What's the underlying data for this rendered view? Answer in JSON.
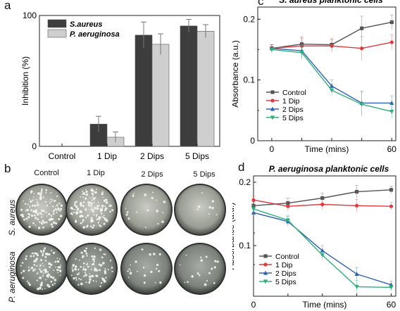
{
  "figure": {
    "panels": {
      "a": "a",
      "b": "b",
      "c": "c",
      "d": "d"
    }
  },
  "panel_a": {
    "ylabel": "Inhibition (%)",
    "y_ticks": [
      "0",
      "100"
    ],
    "legend": [
      "S.aureus",
      "P. aeruginosa"
    ]
  },
  "panel_b": {
    "columns": [
      "Control",
      "1 Dip",
      "2 Dips",
      "5 Dips"
    ],
    "rows": [
      "S. aureus",
      "P. aeruginosa"
    ]
  },
  "panel_c": {
    "title": "S. aureus planktonic cells",
    "ylabel": "Absorbance (a.u.)",
    "xlabel": "Time (mins)",
    "x_ticks": [
      "0",
      "60"
    ],
    "y_ticks": [
      "0",
      "0.1",
      "0.2"
    ],
    "legend": [
      "Control",
      "1 Dip",
      "2 Dips",
      "5 Dips"
    ]
  },
  "panel_d": {
    "title": "P. aeruginosa planktonic cells",
    "ylabel": "Absorbance (a.u.)",
    "xlabel": "Time (mins)",
    "x_ticks": [
      "0",
      "60"
    ],
    "y_ticks": [
      "0.1",
      "0.2"
    ],
    "legend": [
      "Control",
      "1 Dip",
      "2 Dips",
      "5 Dips"
    ]
  },
  "chart_data": [
    {
      "id": "panel-a",
      "type": "bar",
      "categories": [
        "Control",
        "1 Dip",
        "2 Dips",
        "5 Dips"
      ],
      "series": [
        {
          "name": "S.aureus",
          "values": [
            0,
            17,
            85,
            92
          ],
          "errors": [
            0,
            6,
            10,
            5
          ],
          "color": "#3d3d3d"
        },
        {
          "name": "P. aeruginosa",
          "values": [
            0,
            7,
            78,
            88
          ],
          "errors": [
            0,
            4,
            8,
            5
          ],
          "color": "#cfcfcf"
        }
      ],
      "xlabel": "",
      "ylabel": "Inhibition (%)",
      "ylim": [
        0,
        100
      ]
    },
    {
      "id": "panel-c",
      "type": "line",
      "title": "S. aureus planktonic cells",
      "x": [
        0,
        15,
        30,
        45,
        60
      ],
      "series": [
        {
          "name": "Control",
          "values": [
            0.152,
            0.159,
            0.158,
            0.185,
            0.195
          ],
          "color": "#555555",
          "marker": "square"
        },
        {
          "name": "1 Dip",
          "values": [
            0.152,
            0.156,
            0.156,
            0.152,
            0.162
          ],
          "color": "#e0393e",
          "marker": "circle"
        },
        {
          "name": "2 Dips",
          "values": [
            0.152,
            0.148,
            0.09,
            0.062,
            0.062
          ],
          "color": "#2f62b3",
          "marker": "triangle-up"
        },
        {
          "name": "5 Dips",
          "values": [
            0.15,
            0.145,
            0.083,
            0.06,
            0.048
          ],
          "color": "#2fb07a",
          "marker": "triangle-down"
        }
      ],
      "errors": [
        0.006,
        0.012,
        0.01,
        0.02,
        0.012
      ],
      "xlabel": "Time (mins)",
      "ylabel": "Absorbance (a.u.)",
      "xlim": [
        -7,
        62
      ],
      "ylim": [
        0,
        0.22
      ]
    },
    {
      "id": "panel-d",
      "type": "line",
      "title": "P. aeruginosa planktonic cells",
      "x": [
        0,
        15,
        30,
        45,
        60
      ],
      "series": [
        {
          "name": "Control",
          "values": [
            0.163,
            0.167,
            0.175,
            0.185,
            0.188
          ],
          "color": "#555555",
          "marker": "square"
        },
        {
          "name": "1 Dip",
          "values": [
            0.172,
            0.162,
            0.165,
            0.163,
            0.162
          ],
          "color": "#e0393e",
          "marker": "circle"
        },
        {
          "name": "2 Dips",
          "values": [
            0.152,
            0.138,
            0.092,
            0.055,
            0.038
          ],
          "color": "#2f62b3",
          "marker": "triangle-up"
        },
        {
          "name": "5 Dips",
          "values": [
            0.158,
            0.14,
            0.085,
            0.035,
            0.034
          ],
          "color": "#2fb07a",
          "marker": "triangle-down"
        }
      ],
      "errors": [
        0.006,
        0.008,
        0.008,
        0.01,
        0.006
      ],
      "xlabel": "Time (mins)",
      "ylabel": "Absorbance (a.u.)",
      "xlim": [
        0,
        62
      ],
      "ylim": [
        0.02,
        0.21
      ]
    }
  ]
}
